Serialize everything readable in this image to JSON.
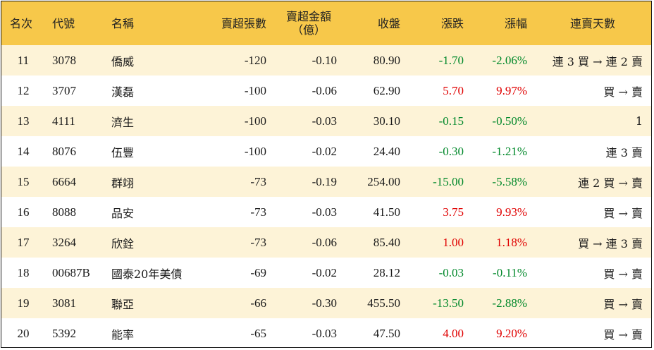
{
  "headers": {
    "rank": "名次",
    "code": "代號",
    "name": "名稱",
    "net_sell_lots": "賣超張數",
    "net_sell_amount": "賣超金額\n（億）",
    "close": "收盤",
    "change": "漲跌",
    "change_pct": "漲幅",
    "streak": "連賣天數"
  },
  "colors": {
    "header_bg": "#f7c84a",
    "stripe_bg": "#fdf3d7",
    "up": "#e00000",
    "down": "#00882a"
  },
  "rows": [
    {
      "rank": "11",
      "code": "3078",
      "name": "僑威",
      "net_sell_lots": "-120",
      "net_sell_amount": "-0.10",
      "close": "80.90",
      "change": "-1.70",
      "change_pct": "-2.06%",
      "direction": "down",
      "streak": "連 3 買 → 連 2 賣"
    },
    {
      "rank": "12",
      "code": "3707",
      "name": "漢磊",
      "net_sell_lots": "-100",
      "net_sell_amount": "-0.06",
      "close": "62.90",
      "change": "5.70",
      "change_pct": "9.97%",
      "direction": "up",
      "streak": "買 → 賣"
    },
    {
      "rank": "13",
      "code": "4111",
      "name": "濟生",
      "net_sell_lots": "-100",
      "net_sell_amount": "-0.03",
      "close": "30.10",
      "change": "-0.15",
      "change_pct": "-0.50%",
      "direction": "down",
      "streak": "1"
    },
    {
      "rank": "14",
      "code": "8076",
      "name": "伍豐",
      "net_sell_lots": "-100",
      "net_sell_amount": "-0.02",
      "close": "24.40",
      "change": "-0.30",
      "change_pct": "-1.21%",
      "direction": "down",
      "streak": "連 3 賣"
    },
    {
      "rank": "15",
      "code": "6664",
      "name": "群翊",
      "net_sell_lots": "-73",
      "net_sell_amount": "-0.19",
      "close": "254.00",
      "change": "-15.00",
      "change_pct": "-5.58%",
      "direction": "down",
      "streak": "連 2 買 → 賣"
    },
    {
      "rank": "16",
      "code": "8088",
      "name": "品安",
      "net_sell_lots": "-73",
      "net_sell_amount": "-0.03",
      "close": "41.50",
      "change": "3.75",
      "change_pct": "9.93%",
      "direction": "up",
      "streak": "買 → 賣"
    },
    {
      "rank": "17",
      "code": "3264",
      "name": "欣銓",
      "net_sell_lots": "-73",
      "net_sell_amount": "-0.06",
      "close": "85.40",
      "change": "1.00",
      "change_pct": "1.18%",
      "direction": "up",
      "streak": "買 → 連 3 賣"
    },
    {
      "rank": "18",
      "code": "00687B",
      "name": "國泰20年美債",
      "net_sell_lots": "-69",
      "net_sell_amount": "-0.02",
      "close": "28.12",
      "change": "-0.03",
      "change_pct": "-0.11%",
      "direction": "down",
      "streak": "買 → 賣"
    },
    {
      "rank": "19",
      "code": "3081",
      "name": "聯亞",
      "net_sell_lots": "-66",
      "net_sell_amount": "-0.30",
      "close": "455.50",
      "change": "-13.50",
      "change_pct": "-2.88%",
      "direction": "down",
      "streak": "買 → 賣"
    },
    {
      "rank": "20",
      "code": "5392",
      "name": "能率",
      "net_sell_lots": "-65",
      "net_sell_amount": "-0.03",
      "close": "47.50",
      "change": "4.00",
      "change_pct": "9.20%",
      "direction": "up",
      "streak": "買 → 賣"
    }
  ]
}
